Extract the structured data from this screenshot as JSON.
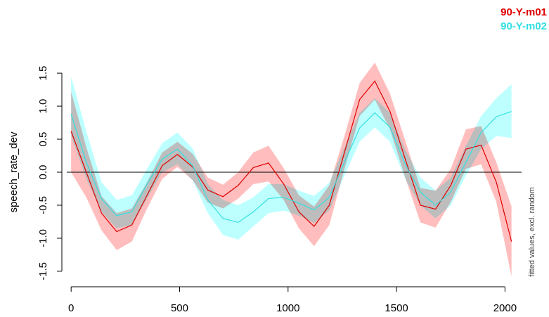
{
  "chart_data": {
    "type": "line",
    "ylabel": "speech_rate_dev",
    "xlabel": "",
    "side_note": "fitted values, excl. random",
    "xlim": [
      -20,
      2070
    ],
    "ylim": [
      -1.65,
      1.65
    ],
    "x_ticks": [
      0,
      500,
      1000,
      1500,
      2000
    ],
    "y_ticks": [
      -1.5,
      -1.0,
      -0.5,
      0.0,
      0.5,
      1.0,
      1.5
    ],
    "y_tick_labels": [
      "-1.5",
      "-1.0",
      "-0.5",
      "0.0",
      "0.5",
      "1.0",
      "1.5"
    ],
    "reference_line_y": 0,
    "legend_position": "top-right",
    "series": [
      {
        "name": "90-Y-m01",
        "color": "#e00000",
        "band_color": "#ff9999",
        "x": [
          0,
          70,
          140,
          210,
          280,
          350,
          420,
          490,
          560,
          630,
          700,
          770,
          840,
          910,
          980,
          1050,
          1120,
          1190,
          1260,
          1330,
          1400,
          1470,
          1540,
          1610,
          1680,
          1750,
          1820,
          1890,
          1960,
          2030
        ],
        "y": [
          0.62,
          0.0,
          -0.62,
          -0.9,
          -0.8,
          -0.35,
          0.1,
          0.27,
          0.08,
          -0.27,
          -0.37,
          -0.2,
          0.07,
          0.14,
          -0.18,
          -0.6,
          -0.82,
          -0.5,
          0.3,
          1.1,
          1.38,
          0.92,
          0.2,
          -0.5,
          -0.56,
          -0.2,
          0.35,
          0.41,
          -0.15,
          -1.05
        ],
        "lower": [
          0.0,
          -0.38,
          -0.88,
          -1.18,
          -1.05,
          -0.55,
          -0.1,
          0.08,
          -0.12,
          -0.46,
          -0.55,
          -0.4,
          -0.18,
          -0.14,
          -0.42,
          -0.85,
          -1.12,
          -0.8,
          0.05,
          0.85,
          1.1,
          0.65,
          -0.08,
          -0.76,
          -0.84,
          -0.45,
          0.05,
          0.12,
          -0.45,
          -1.58
        ],
        "upper": [
          1.22,
          0.38,
          -0.36,
          -0.62,
          -0.55,
          -0.15,
          0.3,
          0.46,
          0.28,
          -0.08,
          -0.19,
          0.0,
          0.3,
          0.4,
          0.06,
          -0.35,
          -0.52,
          -0.2,
          0.55,
          1.35,
          1.66,
          1.19,
          0.48,
          -0.24,
          -0.28,
          0.05,
          0.65,
          0.7,
          0.15,
          -0.52
        ]
      },
      {
        "name": "90-Y-m02",
        "color": "#33e0e0",
        "band_color": "#99ffff",
        "x": [
          0,
          70,
          140,
          210,
          280,
          350,
          420,
          490,
          560,
          630,
          700,
          770,
          840,
          910,
          980,
          1050,
          1120,
          1190,
          1260,
          1330,
          1400,
          1470,
          1540,
          1610,
          1680,
          1750,
          1820,
          1890,
          1960,
          2030
        ],
        "y": [
          0.88,
          0.15,
          -0.4,
          -0.66,
          -0.6,
          -0.18,
          0.2,
          0.35,
          0.1,
          -0.42,
          -0.7,
          -0.76,
          -0.6,
          -0.4,
          -0.38,
          -0.47,
          -0.57,
          -0.38,
          0.15,
          0.67,
          0.9,
          0.68,
          0.12,
          -0.3,
          -0.5,
          -0.3,
          0.15,
          0.6,
          0.84,
          0.92
        ],
        "lower": [
          0.55,
          -0.1,
          -0.6,
          -0.85,
          -0.8,
          -0.4,
          0.0,
          0.12,
          -0.12,
          -0.62,
          -0.95,
          -1.02,
          -0.82,
          -0.62,
          -0.58,
          -0.66,
          -0.77,
          -0.58,
          -0.05,
          0.46,
          0.68,
          0.46,
          -0.1,
          -0.5,
          -0.7,
          -0.5,
          -0.05,
          0.35,
          0.55,
          0.52
        ],
        "upper": [
          1.45,
          0.62,
          -0.15,
          -0.42,
          -0.35,
          0.05,
          0.44,
          0.6,
          0.36,
          -0.18,
          -0.42,
          -0.5,
          -0.38,
          -0.18,
          -0.18,
          -0.28,
          -0.36,
          -0.16,
          0.38,
          0.9,
          1.12,
          0.9,
          0.34,
          -0.08,
          -0.28,
          -0.08,
          0.4,
          0.85,
          1.12,
          1.33
        ]
      }
    ]
  }
}
